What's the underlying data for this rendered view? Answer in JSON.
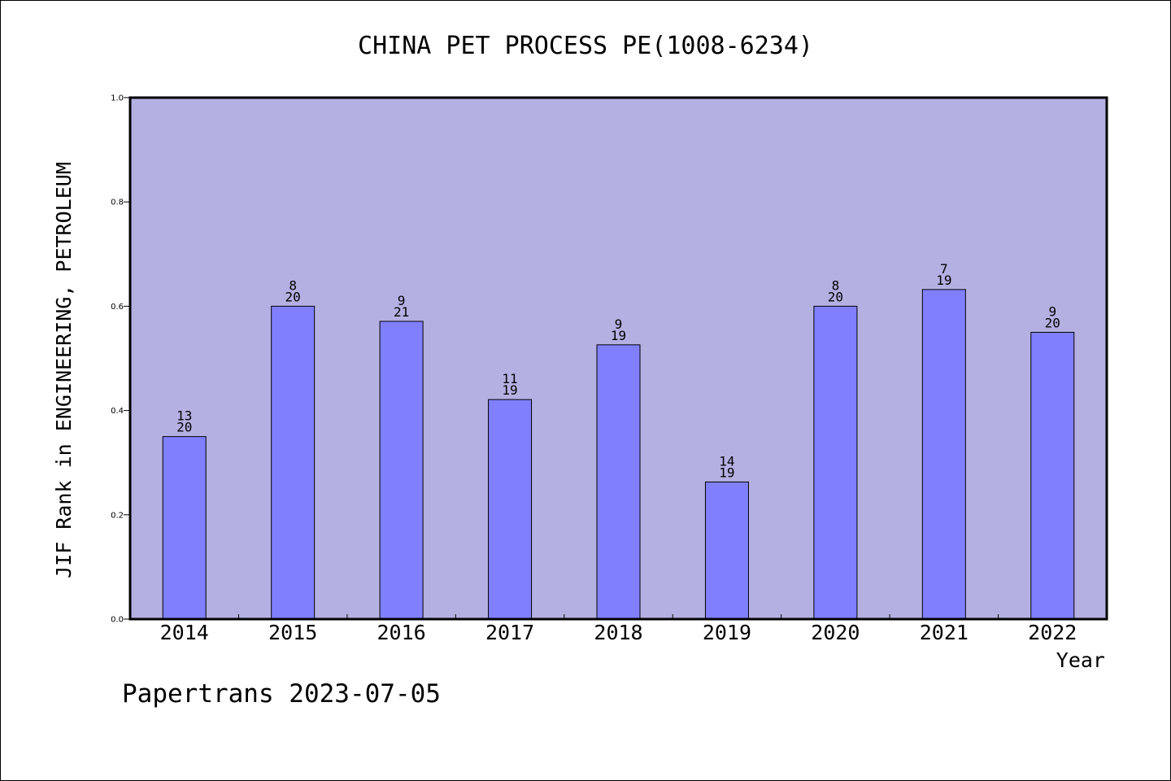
{
  "chart_data": {
    "type": "bar",
    "title": "CHINA PET PROCESS PE(1008-6234)",
    "xlabel": "Year",
    "ylabel": "JIF Rank in ENGINEERING, PETROLEUM",
    "ylim": [
      0,
      1.0
    ],
    "yticks": [
      "0.0",
      "0.2",
      "0.4",
      "0.6",
      "0.8",
      "1.0"
    ],
    "categories": [
      "2014",
      "2015",
      "2016",
      "2017",
      "2018",
      "2019",
      "2020",
      "2021",
      "2022"
    ],
    "values": [
      0.35,
      0.6,
      0.571,
      0.421,
      0.526,
      0.263,
      0.6,
      0.632,
      0.55
    ],
    "labels": [
      {
        "rank": "13",
        "total": "20"
      },
      {
        "rank": "8",
        "total": "20"
      },
      {
        "rank": "9",
        "total": "21"
      },
      {
        "rank": "11",
        "total": "19"
      },
      {
        "rank": "9",
        "total": "19"
      },
      {
        "rank": "14",
        "total": "19"
      },
      {
        "rank": "8",
        "total": "20"
      },
      {
        "rank": "7",
        "total": "19"
      },
      {
        "rank": "9",
        "total": "20"
      }
    ],
    "grid": false,
    "colors": {
      "plot_bg": "#b5b0e2",
      "bar_fill": "#8080ff",
      "bar_edge": "#000000"
    }
  },
  "footer": "Papertrans 2023-07-05"
}
